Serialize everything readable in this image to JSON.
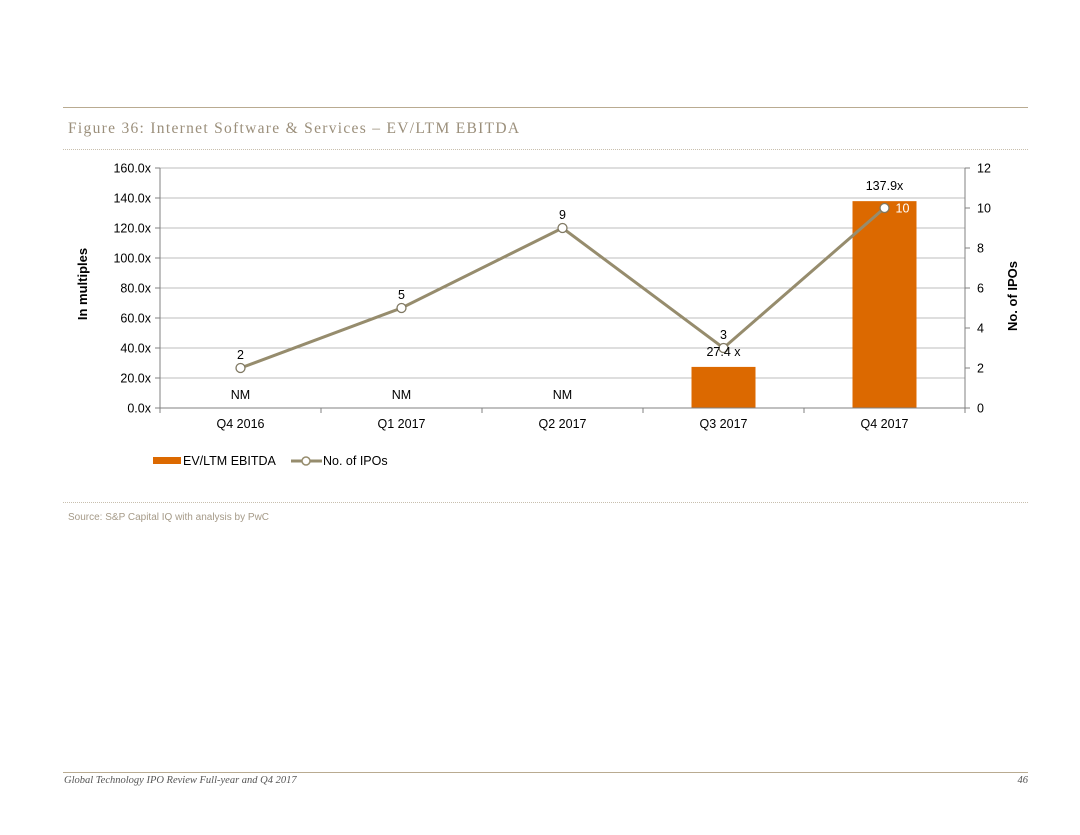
{
  "page": {
    "figure_title": "Figure 36: Internet Software & Services – EV/LTM EBITDA",
    "source": "Source: S&P Capital IQ with analysis by PwC",
    "footer_title": "Global Technology IPO Review Full-year and Q4 2017",
    "page_number": "46"
  },
  "chart_data": {
    "type": "bar",
    "title": "",
    "categories": [
      "Q4 2016",
      "Q1 2017",
      "Q2 2017",
      "Q3 2017",
      "Q4 2017"
    ],
    "ylabel": "In multiples",
    "y2label": "No. of IPOs",
    "ylim": [
      0,
      160
    ],
    "y2lim": [
      0,
      12
    ],
    "yticks": [
      "0.0x",
      "20.0x",
      "40.0x",
      "60.0x",
      "80.0x",
      "100.0x",
      "120.0x",
      "140.0x",
      "160.0x"
    ],
    "y2ticks": [
      "0",
      "2",
      "4",
      "6",
      "8",
      "10",
      "12"
    ],
    "grid": true,
    "legend_position": "bottom-left",
    "series": [
      {
        "name": "EV/LTM EBITDA",
        "kind": "bar",
        "axis": "left",
        "color": "#dc6900",
        "values": [
          null,
          null,
          null,
          27.4,
          137.9
        ],
        "labels": [
          "NM",
          "NM",
          "NM",
          "27.4 x",
          "137.9x"
        ]
      },
      {
        "name": "No. of IPOs",
        "kind": "line",
        "axis": "right",
        "color": "#968c6d",
        "values": [
          2,
          5,
          9,
          3,
          10
        ],
        "labels": [
          "2",
          "5",
          "9",
          "3",
          "10"
        ]
      }
    ]
  }
}
